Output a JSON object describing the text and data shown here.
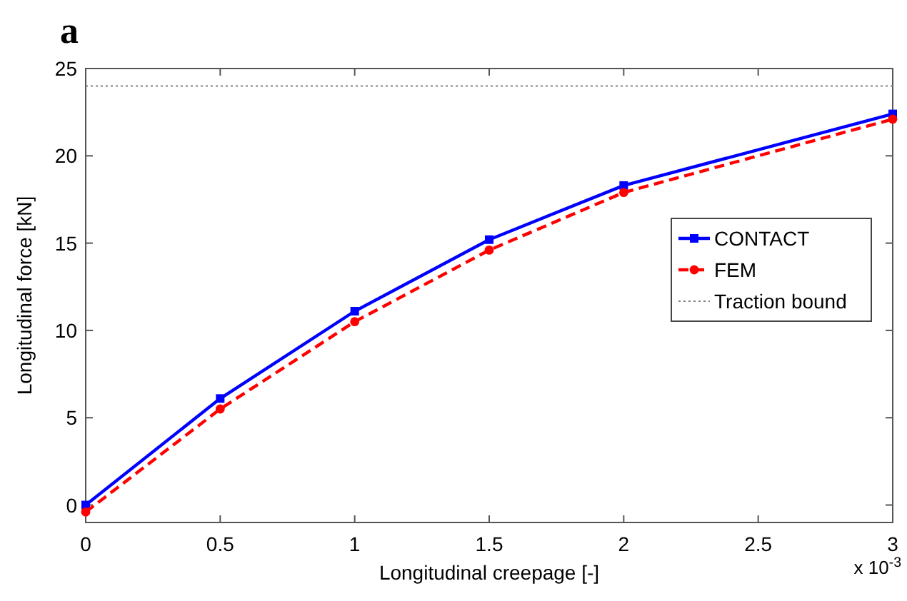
{
  "chart_data": {
    "type": "line",
    "title": "a",
    "xlabel": "Longitudinal creepage [-]",
    "ylabel": "Longitudinal force [kN]",
    "annotations": [
      "x 10$^{-3}$"
    ],
    "x": [
      0,
      0.5,
      1,
      1.5,
      2,
      3
    ],
    "series": [
      {
        "name": "CONTACT",
        "color": "#0000ff",
        "values": [
          0,
          6.1,
          11.1,
          15.2,
          18.3,
          22.4
        ],
        "marker": "square",
        "line_style": "solid"
      },
      {
        "name": "FEM",
        "color": "#ff0000",
        "values": [
          -0.4,
          5.5,
          10.5,
          14.6,
          17.9,
          22.1
        ],
        "marker": "circle",
        "line_style": "dashed"
      }
    ],
    "ref_lines": [
      {
        "axis": "y",
        "value": 24,
        "label": "Traction bound",
        "color": "#808080",
        "line_style": "dotted"
      }
    ],
    "xlim": [
      0,
      3
    ],
    "xticks": [
      0,
      0.5,
      1,
      1.5,
      2,
      2.5,
      3
    ],
    "ylim": [
      -1,
      25
    ],
    "yticks": [
      0,
      5,
      10,
      15,
      20,
      25
    ],
    "grid": false,
    "legend": "right"
  }
}
